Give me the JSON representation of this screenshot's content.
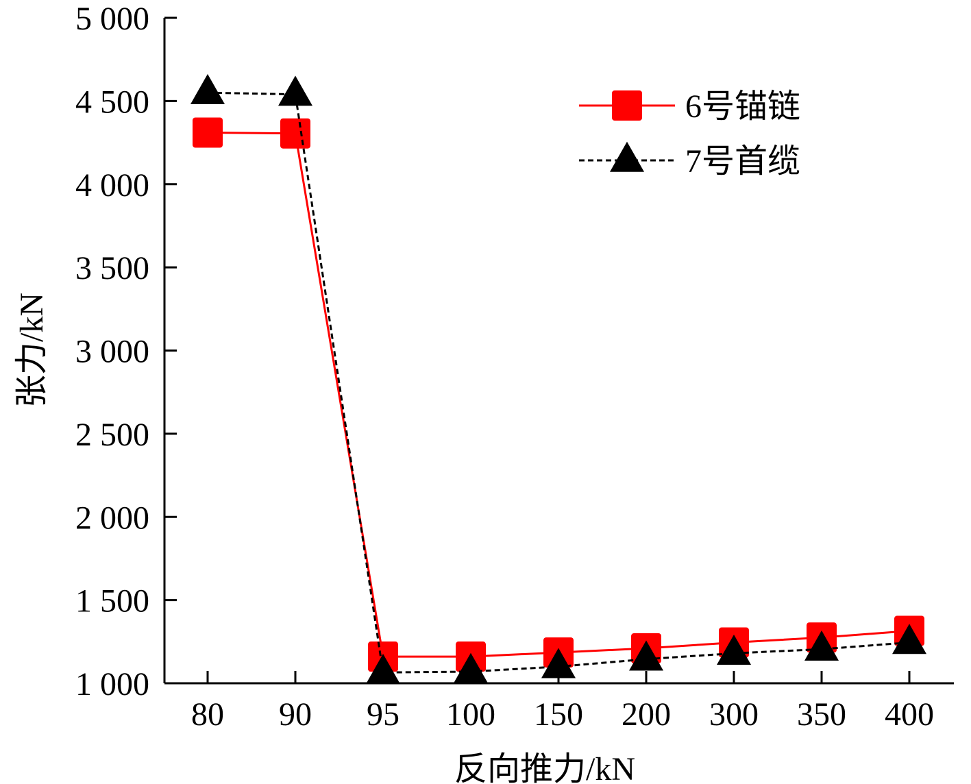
{
  "chart_data": {
    "type": "line",
    "title": "",
    "xlabel": "反向推力/kN",
    "ylabel": "张力/kN",
    "categories": [
      "80",
      "90",
      "95",
      "100",
      "150",
      "200",
      "300",
      "350",
      "400"
    ],
    "ylim": [
      1000,
      5000
    ],
    "yticks": [
      1000,
      1500,
      2000,
      2500,
      3000,
      3500,
      4000,
      4500,
      5000
    ],
    "ytick_labels": [
      "1 000",
      "1 500",
      "2 000",
      "2 500",
      "3 000",
      "3 500",
      "4 000",
      "4 500",
      "5 000"
    ],
    "grid": false,
    "legend_position": "top-right",
    "series": [
      {
        "name": "6号锚链",
        "values": [
          4310,
          4305,
          1160,
          1160,
          1185,
          1210,
          1245,
          1275,
          1315
        ],
        "color": "#ff0000",
        "marker": "square",
        "line_style": "solid"
      },
      {
        "name": "7号首缆",
        "values": [
          4550,
          4540,
          1065,
          1070,
          1100,
          1145,
          1180,
          1205,
          1245
        ],
        "color": "#000000",
        "marker": "triangle",
        "line_style": "dashed"
      }
    ]
  }
}
